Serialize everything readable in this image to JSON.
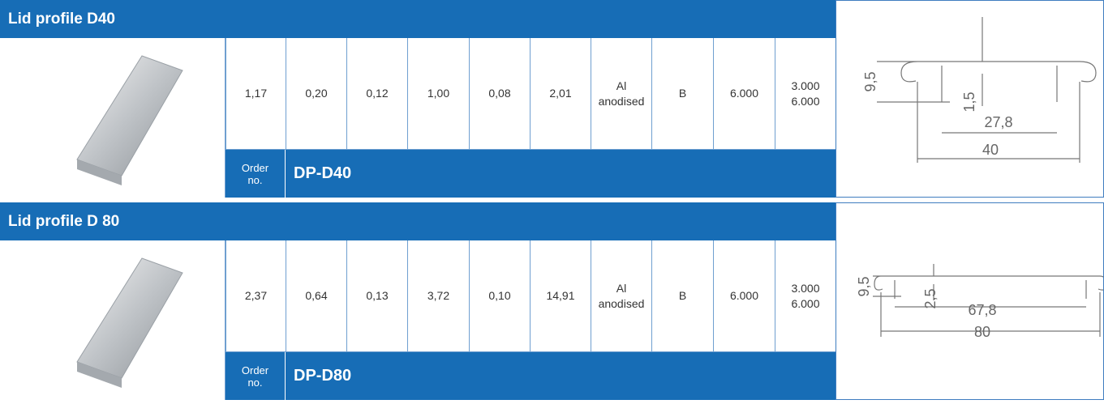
{
  "sections": [
    {
      "title": "Lid profile D40",
      "values": [
        "1,17",
        "0,20",
        "0,12",
        "1,00",
        "0,08",
        "2,01",
        "Al anodised",
        "B",
        "6.000",
        "3.000 6.000"
      ],
      "order_label": "Order no.",
      "order_code": "DP-D40",
      "dimensions": [
        "9,5",
        "1,5",
        "27,8",
        "40"
      ]
    },
    {
      "title": "Lid profile D 80",
      "values": [
        "2,37",
        "0,64",
        "0,13",
        "3,72",
        "0,10",
        "14,91",
        "Al anodised",
        "B",
        "6.000",
        "3.000 6.000"
      ],
      "order_label": "Order no.",
      "order_code": "DP-D80",
      "dimensions": [
        "9,5",
        "2,5",
        "67,8",
        "80"
      ]
    }
  ]
}
